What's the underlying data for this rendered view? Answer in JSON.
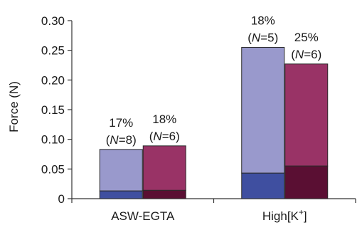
{
  "chart_data": {
    "type": "bar",
    "stacked": true,
    "categories": [
      "ASW-EGTA",
      "High[K⁺]"
    ],
    "y_tick_labels": [
      "0",
      "0.05",
      "0.10",
      "0.15",
      "0.20",
      "0.25",
      "0.30"
    ],
    "ylabel": "Force (N)",
    "ylim": [
      0,
      0.3
    ],
    "grid": false,
    "bars": [
      {
        "category": "ASW-EGTA",
        "group": "left",
        "total": 0.083,
        "base": 0.013,
        "colors": {
          "top": "#9999cc",
          "base": "#3f4fa0"
        },
        "annotation": {
          "percent": "17%",
          "n_prefix": "(",
          "n_italic": "N",
          "n_suffix": "=8)"
        }
      },
      {
        "category": "ASW-EGTA",
        "group": "right",
        "total": 0.089,
        "base": 0.014,
        "colors": {
          "top": "#993366",
          "base": "#5a0f33"
        },
        "annotation": {
          "percent": "18%",
          "n_prefix": "(",
          "n_italic": "N",
          "n_suffix": "=6)"
        }
      },
      {
        "category": "High[K⁺]",
        "group": "left",
        "total": 0.255,
        "base": 0.043,
        "colors": {
          "top": "#9999cc",
          "base": "#3f4fa0"
        },
        "annotation": {
          "percent": "18%",
          "n_prefix": "(",
          "n_italic": "N",
          "n_suffix": "=5)"
        }
      },
      {
        "category": "High[K⁺]",
        "group": "right",
        "total": 0.227,
        "base": 0.055,
        "colors": {
          "top": "#993366",
          "base": "#5a0f33"
        },
        "annotation": {
          "percent": "25%",
          "n_prefix": "(",
          "n_italic": "N",
          "n_suffix": "=6)"
        }
      }
    ]
  }
}
